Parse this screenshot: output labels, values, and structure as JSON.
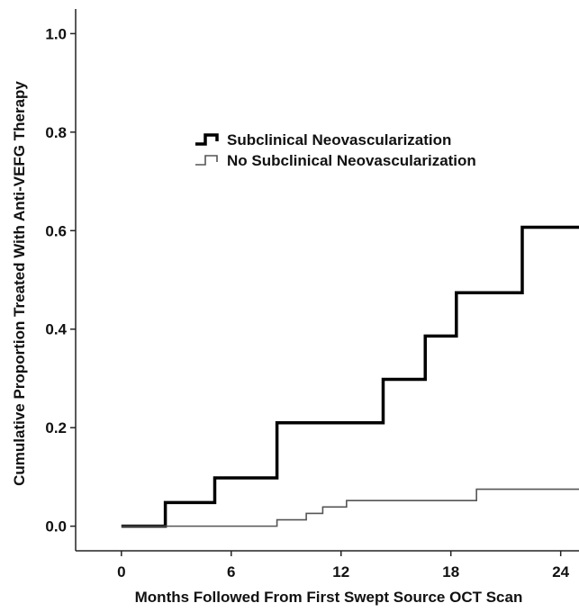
{
  "chart_data": {
    "type": "line",
    "step": true,
    "xlabel": "Months Followed From First Swept Source OCT Scan",
    "ylabel": "Cumulative Proportion Treated With Anti-VEFG Therapy",
    "xlim": [
      -2.5,
      25
    ],
    "ylim": [
      -0.05,
      1.05
    ],
    "xticks": [
      0,
      6,
      12,
      18,
      24
    ],
    "yticks": [
      0.0,
      0.2,
      0.4,
      0.6,
      0.8,
      1.0
    ],
    "xtick_labels": [
      "0",
      "6",
      "12",
      "18",
      "24"
    ],
    "ytick_labels": [
      "0.0",
      "0.2",
      "0.4",
      "0.6",
      "0.8",
      "1.0"
    ],
    "legend_position": "upper-center",
    "series": [
      {
        "name": "Subclinical Neovascularization",
        "color": "#000000",
        "style": "thick",
        "x": [
          0,
          2.4,
          5.1,
          8.5,
          14.3,
          16.6,
          18.3,
          21.9,
          25
        ],
        "y": [
          0.0,
          0.048,
          0.098,
          0.21,
          0.298,
          0.386,
          0.474,
          0.607,
          0.607
        ]
      },
      {
        "name": "No Subclinical Neovascularization",
        "color": "#555555",
        "style": "thin",
        "x": [
          0,
          8.5,
          10.1,
          11.0,
          12.3,
          14.3,
          19.4,
          25
        ],
        "y": [
          0.0,
          0.013,
          0.026,
          0.039,
          0.052,
          0.052,
          0.075,
          0.075
        ]
      }
    ]
  }
}
